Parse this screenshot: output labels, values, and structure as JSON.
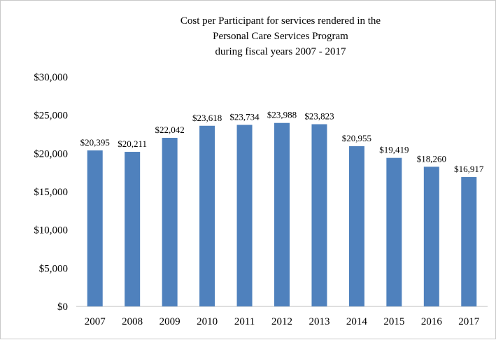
{
  "chart_data": {
    "type": "bar",
    "title_lines": [
      "Cost per Participant for services rendered in the",
      "Personal Care Services Program",
      "during fiscal years 2007 - 2017"
    ],
    "categories": [
      "2007",
      "2008",
      "2009",
      "2010",
      "2011",
      "2012",
      "2013",
      "2014",
      "2015",
      "2016",
      "2017"
    ],
    "values": [
      20395,
      20211,
      22042,
      23618,
      23734,
      23988,
      23823,
      20955,
      19419,
      18260,
      16917
    ],
    "data_labels": [
      "$20,395",
      "$20,211",
      "$22,042",
      "$23,618",
      "$23,734",
      "$23,988",
      "$23,823",
      "$20,955",
      "$19,419",
      "$18,260",
      "$16,917"
    ],
    "y_ticks": [
      {
        "value": 0,
        "label": "$0"
      },
      {
        "value": 5000,
        "label": "$5,000"
      },
      {
        "value": 10000,
        "label": "$10,000"
      },
      {
        "value": 15000,
        "label": "$15,000"
      },
      {
        "value": 20000,
        "label": "$20,000"
      },
      {
        "value": 25000,
        "label": "$25,000"
      },
      {
        "value": 30000,
        "label": "$30,000"
      }
    ],
    "ylim": [
      0,
      30000
    ],
    "grid": false,
    "legend": "none",
    "bar_color": "#4f81bd",
    "axis_color": "#bfbfbf"
  }
}
